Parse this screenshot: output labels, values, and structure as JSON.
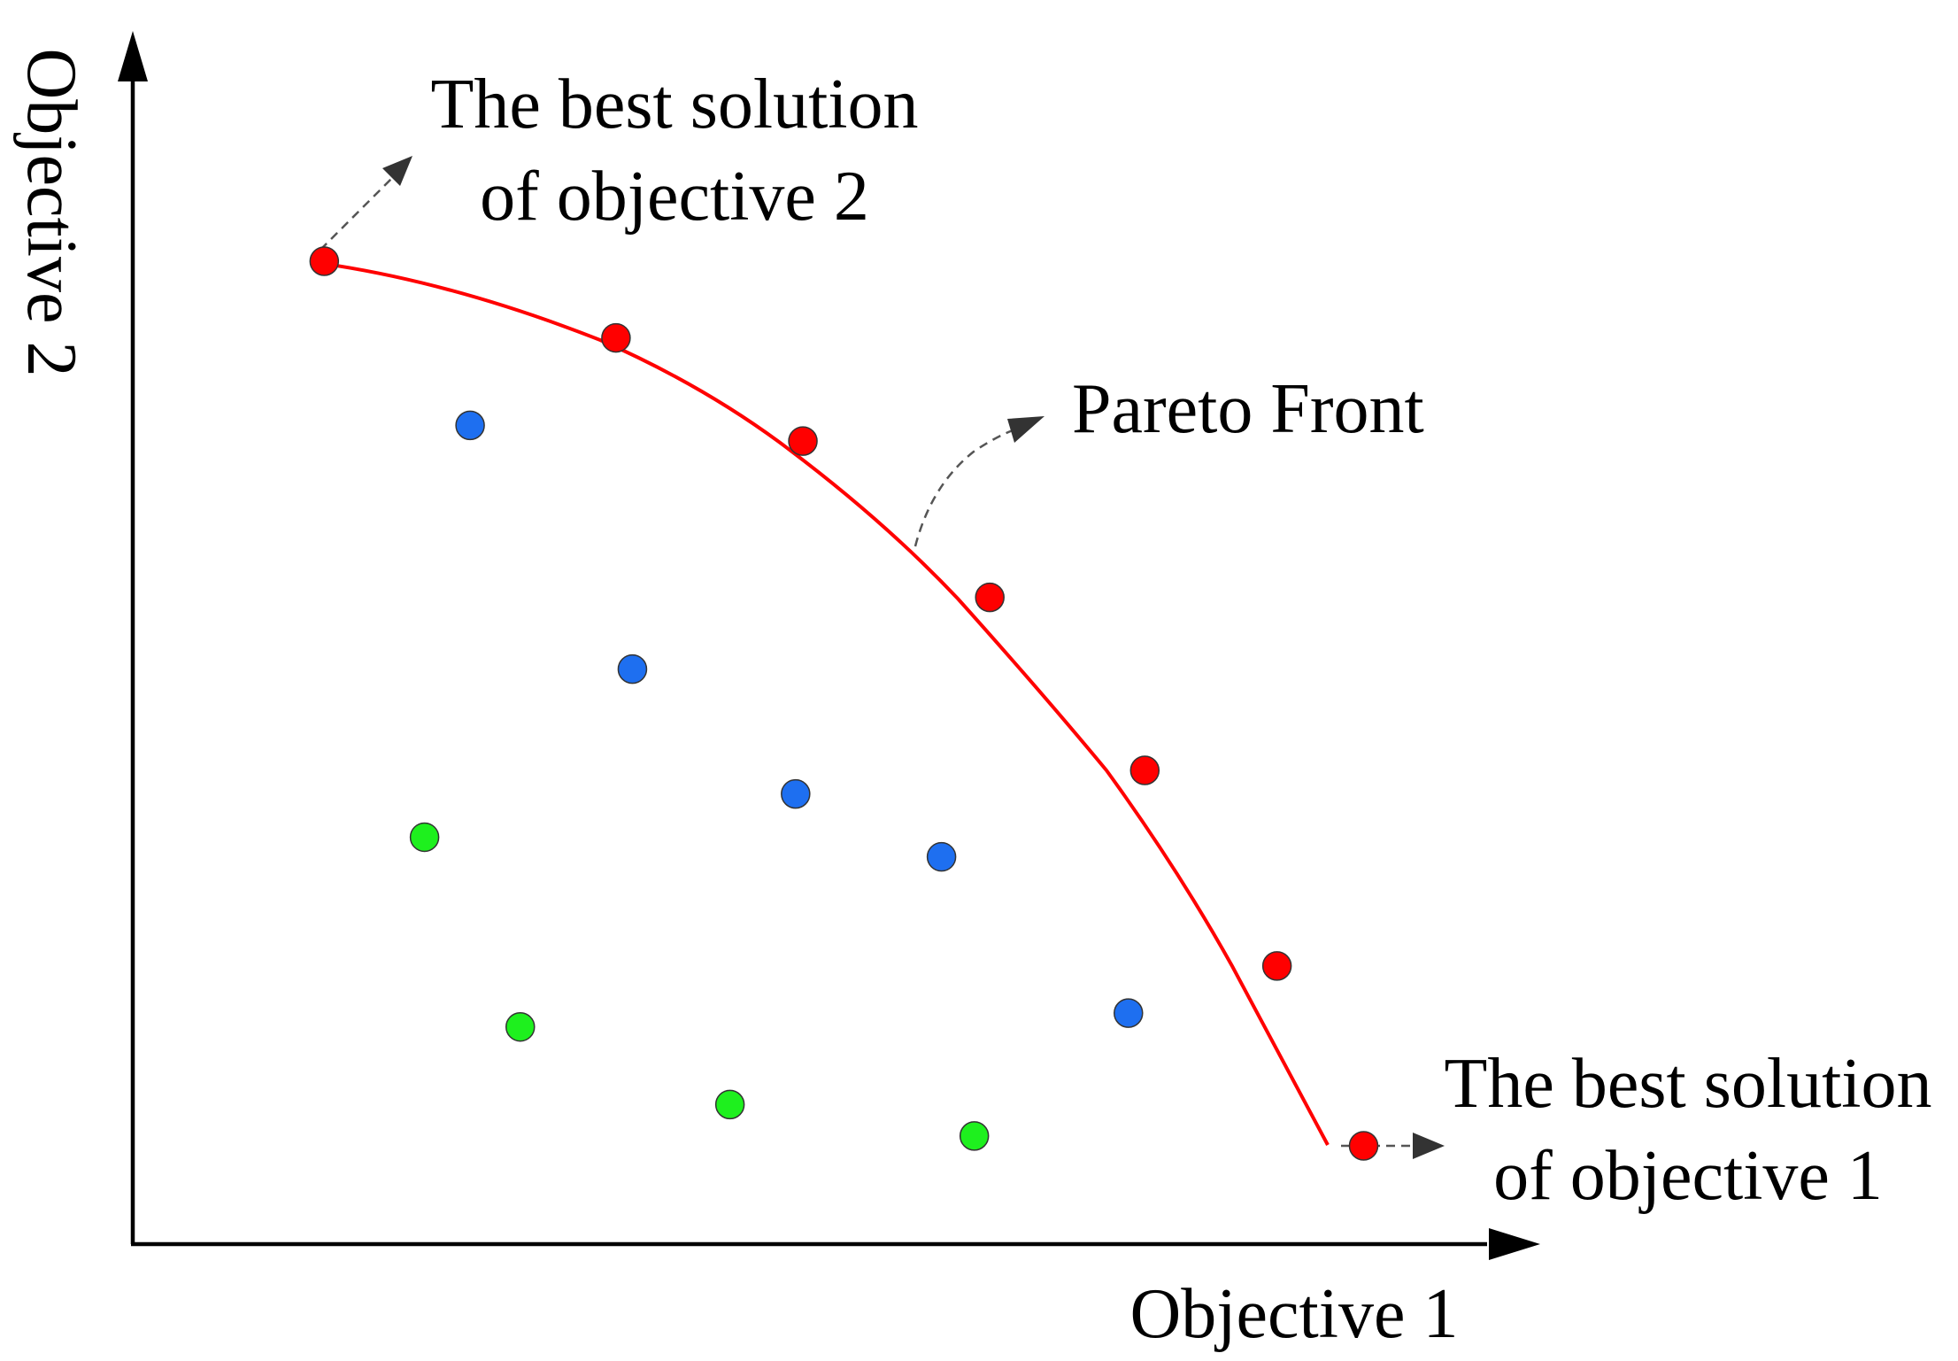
{
  "axes": {
    "x_label": "Objective 1",
    "y_label": "Objective 2"
  },
  "annotations": {
    "best_obj2_line1": "The best solution",
    "best_obj2_line2": "of objective 2",
    "pareto_front": "Pareto Front",
    "best_obj1_line1": "The best solution",
    "best_obj1_line2": "of objective 1"
  },
  "colors": {
    "pareto": "#ff0000",
    "blue_points": "#1e6ff0",
    "green_points": "#1ef01e",
    "axis": "#000000"
  },
  "points": {
    "pareto": [
      {
        "x": 2.1,
        "y": 10.0
      },
      {
        "x": 5.3,
        "y": 9.22
      },
      {
        "x": 7.35,
        "y": 8.17
      },
      {
        "x": 9.4,
        "y": 6.58
      },
      {
        "x": 11.1,
        "y": 4.82
      },
      {
        "x": 12.55,
        "y": 2.83
      },
      {
        "x": 13.5,
        "y": 1.0
      }
    ],
    "blue": [
      {
        "x": 3.7,
        "y": 8.33
      },
      {
        "x": 5.48,
        "y": 5.85
      },
      {
        "x": 7.27,
        "y": 4.58
      },
      {
        "x": 8.87,
        "y": 3.94
      },
      {
        "x": 10.92,
        "y": 2.35
      }
    ],
    "green": [
      {
        "x": 3.2,
        "y": 4.14
      },
      {
        "x": 4.25,
        "y": 2.21
      },
      {
        "x": 6.55,
        "y": 1.42
      },
      {
        "x": 9.23,
        "y": 1.1
      }
    ]
  }
}
